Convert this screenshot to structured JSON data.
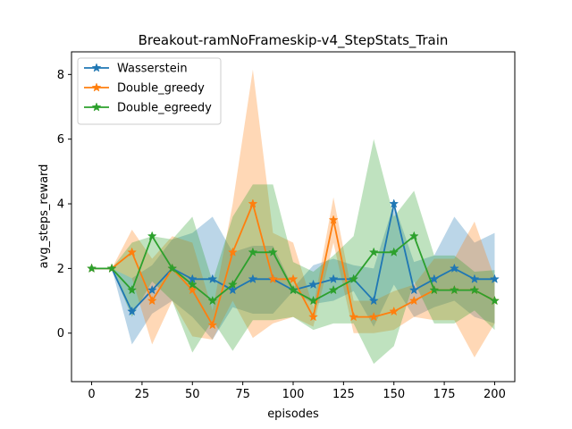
{
  "chart_data": {
    "type": "line",
    "title": "Breakout-ramNoFrameskip-v4_StepStats_Train",
    "xlabel": "episodes",
    "ylabel": "avg_steps_reward",
    "xlim": [
      -10,
      210
    ],
    "ylim": [
      -1.5,
      8.7
    ],
    "xticks": [
      0,
      25,
      50,
      75,
      100,
      125,
      150,
      175,
      200
    ],
    "yticks": [
      0,
      2,
      4,
      6,
      8
    ],
    "grid": false,
    "legend_position": "top-left",
    "x": [
      0,
      10,
      20,
      30,
      40,
      50,
      60,
      70,
      80,
      90,
      100,
      110,
      120,
      130,
      140,
      150,
      160,
      170,
      180,
      190,
      200
    ],
    "series": [
      {
        "name": "Wasserstein",
        "color": "#1f77b4",
        "marker": "star",
        "values": [
          2.0,
          2.0,
          0.67,
          1.33,
          2.0,
          1.67,
          1.67,
          1.33,
          1.67,
          1.67,
          1.33,
          1.5,
          1.67,
          1.67,
          1.0,
          4.0,
          1.33,
          1.67,
          2.0,
          1.67,
          1.67
        ],
        "lower": [
          2.0,
          2.0,
          -0.35,
          0.6,
          1.0,
          0.5,
          -0.2,
          0.8,
          0.6,
          0.6,
          1.3,
          0.9,
          1.0,
          1.3,
          0.2,
          1.5,
          0.5,
          0.8,
          1.0,
          0.5,
          0.3
        ],
        "upper": [
          2.0,
          2.0,
          1.7,
          2.1,
          2.9,
          3.1,
          3.6,
          2.5,
          2.7,
          2.7,
          1.4,
          2.1,
          2.3,
          2.1,
          2.0,
          4.0,
          2.2,
          2.4,
          3.6,
          2.8,
          3.1
        ]
      },
      {
        "name": "Double_greedy",
        "color": "#ff7f0e",
        "marker": "star",
        "values": [
          2.0,
          2.0,
          2.5,
          1.0,
          2.0,
          1.33,
          0.25,
          2.5,
          4.0,
          1.67,
          1.67,
          0.5,
          3.5,
          0.5,
          0.5,
          0.67,
          1.0,
          1.33,
          1.33,
          1.33,
          1.0
        ],
        "lower": [
          2.0,
          2.0,
          1.7,
          -0.35,
          1.0,
          -0.1,
          -0.2,
          1.0,
          -0.15,
          0.3,
          0.5,
          0.2,
          2.8,
          0.0,
          0.0,
          0.1,
          0.5,
          0.4,
          0.4,
          -0.75,
          0.3
        ],
        "upper": [
          2.0,
          2.0,
          3.2,
          2.3,
          3.0,
          2.8,
          0.7,
          4.0,
          8.15,
          3.1,
          2.8,
          0.8,
          4.2,
          1.0,
          1.0,
          1.3,
          1.5,
          2.3,
          2.3,
          3.45,
          1.7
        ]
      },
      {
        "name": "Double_egreedy",
        "color": "#2ca02c",
        "marker": "star",
        "values": [
          2.0,
          2.0,
          1.33,
          3.0,
          2.0,
          1.5,
          1.0,
          1.5,
          2.5,
          2.5,
          1.33,
          1.0,
          1.33,
          1.67,
          2.5,
          2.5,
          3.0,
          1.33,
          1.33,
          1.33,
          1.0
        ],
        "lower": [
          2.0,
          2.0,
          0.5,
          1.6,
          1.0,
          -0.6,
          0.4,
          -0.55,
          0.4,
          0.4,
          0.5,
          0.1,
          0.3,
          0.3,
          -0.95,
          -0.4,
          1.6,
          0.3,
          0.3,
          0.7,
          0.1
        ],
        "upper": [
          2.0,
          2.0,
          2.8,
          3.0,
          2.9,
          3.6,
          1.6,
          3.6,
          4.6,
          4.6,
          2.2,
          1.9,
          2.4,
          3.0,
          6.0,
          3.6,
          4.4,
          2.4,
          2.4,
          1.9,
          1.95
        ]
      }
    ]
  }
}
